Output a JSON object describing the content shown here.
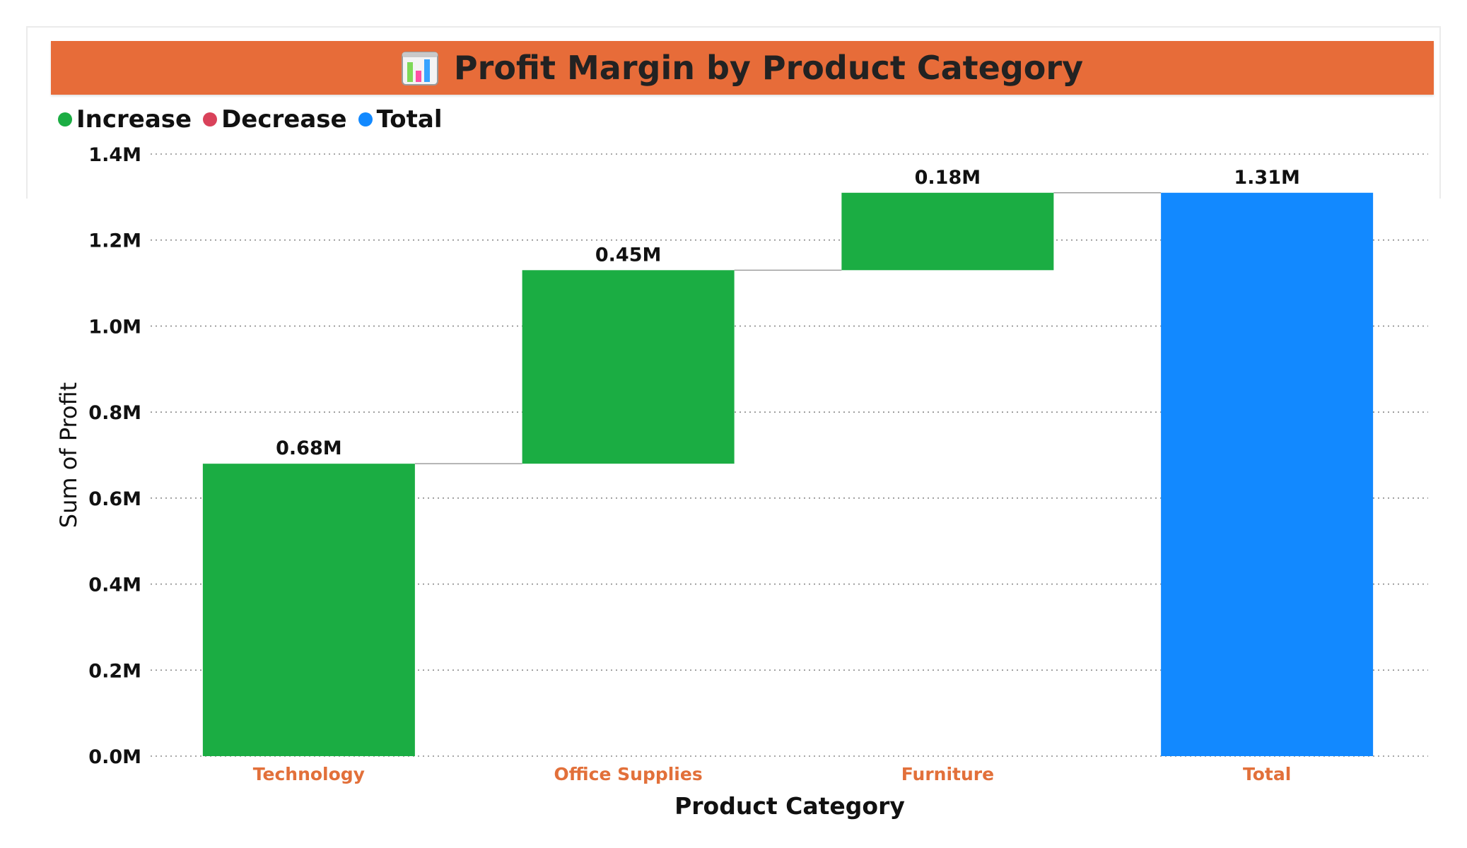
{
  "colors": {
    "increase": "#1BAD43",
    "decrease": "#D9425A",
    "total": "#1289FF",
    "title_bar": "#E76C39",
    "category_label": "#E2703A",
    "grid": "#8a8a8a",
    "connector": "#9e9e9e"
  },
  "header": {
    "icon": "bar-chart-icon",
    "title": "Profit Margin by Product Category"
  },
  "legend": {
    "items": [
      {
        "label": "Increase",
        "color": "#1BAD43"
      },
      {
        "label": "Decrease",
        "color": "#D9425A"
      },
      {
        "label": "Total",
        "color": "#1289FF"
      }
    ]
  },
  "chart_data": {
    "type": "bar",
    "subtype": "waterfall",
    "title": "Profit Margin by Product Category",
    "xlabel": "Product Category",
    "ylabel": "Sum of Profit",
    "categories": [
      "Technology",
      "Office Supplies",
      "Furniture",
      "Total"
    ],
    "values": [
      0.68,
      0.45,
      0.18,
      1.31
    ],
    "kinds": [
      "increase",
      "increase",
      "increase",
      "total"
    ],
    "data_labels": [
      "0.68M",
      "0.45M",
      "0.18M",
      "1.31M"
    ],
    "value_unit": "M",
    "ylim": [
      0,
      1.4
    ],
    "yticks": [
      0,
      0.2,
      0.4,
      0.6,
      0.8,
      1.0,
      1.2,
      1.4
    ],
    "ytick_labels": [
      "0.0M",
      "0.2M",
      "0.4M",
      "0.6M",
      "0.8M",
      "1.0M",
      "1.2M",
      "1.4M"
    ],
    "grid": true,
    "legend_position": "top-left"
  }
}
